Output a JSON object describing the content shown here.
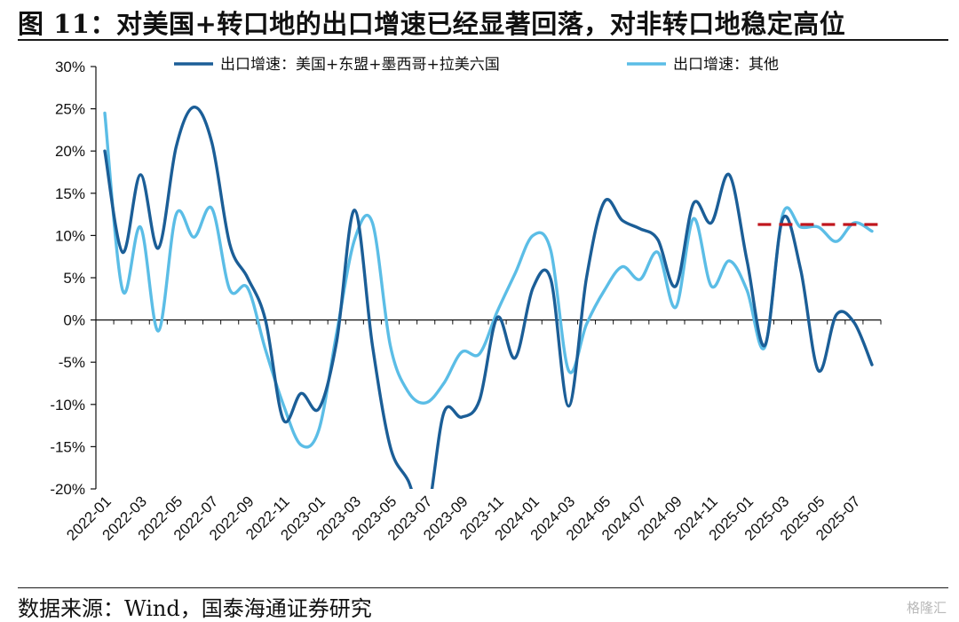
{
  "header": {
    "title": "图 11：对美国+转口地的出口增速已经显著回落，对非转口地稳定高位"
  },
  "footer": {
    "source": "数据来源：Wind，国泰海通证券研究",
    "watermark": "格隆汇"
  },
  "colors": {
    "series1": "#1b5e97",
    "series2": "#5bbde6",
    "reference_line": "#c0161d",
    "axis": "#111111"
  },
  "chart_data": {
    "type": "line",
    "title": "",
    "xlabel": "",
    "ylabel": "",
    "ylim": [
      -20,
      30
    ],
    "yticks": [
      30,
      25,
      20,
      15,
      10,
      5,
      0,
      -5,
      -10,
      -15,
      -20
    ],
    "ytick_labels": [
      "30%",
      "25%",
      "20%",
      "15%",
      "10%",
      "5%",
      "0%",
      "-5%",
      "-10%",
      "-15%",
      "-20%"
    ],
    "legend_position": "top",
    "x": [
      "2022-01",
      "2022-02",
      "2022-03",
      "2022-04",
      "2022-05",
      "2022-06",
      "2022-07",
      "2022-08",
      "2022-09",
      "2022-10",
      "2022-11",
      "2022-12",
      "2023-01",
      "2023-02",
      "2023-03",
      "2023-04",
      "2023-05",
      "2023-06",
      "2023-07",
      "2023-08",
      "2023-09",
      "2023-10",
      "2023-11",
      "2023-12",
      "2024-01",
      "2024-02",
      "2024-03",
      "2024-04",
      "2024-05",
      "2024-06",
      "2024-07",
      "2024-08",
      "2024-09",
      "2024-10",
      "2024-11",
      "2024-12",
      "2025-01",
      "2025-02",
      "2025-03",
      "2025-04",
      "2025-05",
      "2025-06",
      "2025-07",
      "2025-08"
    ],
    "xtick_labels": [
      "2022-01",
      "2022-03",
      "2022-05",
      "2022-07",
      "2022-09",
      "2022-11",
      "2023-01",
      "2023-03",
      "2023-05",
      "2023-07",
      "2023-09",
      "2023-11",
      "2024-01",
      "2024-03",
      "2024-05",
      "2024-07",
      "2024-09",
      "2024-11",
      "2025-01",
      "2025-03",
      "2025-05",
      "2025-07"
    ],
    "series": [
      {
        "name": "出口增速：美国+东盟+墨西哥+拉美六国",
        "values": [
          20,
          8,
          17.2,
          8.5,
          20.5,
          25.2,
          21,
          9,
          5,
          0,
          -11.8,
          -8.7,
          -10.5,
          -2.5,
          13,
          -3,
          -15,
          -19,
          -23.5,
          -11,
          -11.5,
          -9.5,
          0.3,
          -4.5,
          3.8,
          4.8,
          -10.2,
          5,
          14,
          11.8,
          10.8,
          9.5,
          4,
          13.8,
          11.5,
          17.2,
          7,
          -3,
          12,
          6,
          -6,
          0.6,
          -0.3,
          -5.3
        ]
      },
      {
        "name": "出口增速：其他",
        "values": [
          24.5,
          3.5,
          11,
          -1.3,
          12.5,
          9.8,
          13.2,
          3.6,
          3.8,
          -3.5,
          -10,
          -14.8,
          -13,
          -1.5,
          9.5,
          11.5,
          -3,
          -8.5,
          -9.8,
          -7.5,
          -3.8,
          -4,
          1,
          5.5,
          10,
          8.2,
          -6,
          -0.5,
          3.5,
          6.3,
          4.8,
          8,
          1.5,
          12,
          4,
          7,
          3.5,
          -3.2,
          12.5,
          11,
          11,
          9.3,
          11.5,
          10.5
        ]
      }
    ],
    "reference_line": {
      "value": 11.3,
      "style": "dashed",
      "from": "2025-02",
      "to": "2025-08"
    }
  }
}
